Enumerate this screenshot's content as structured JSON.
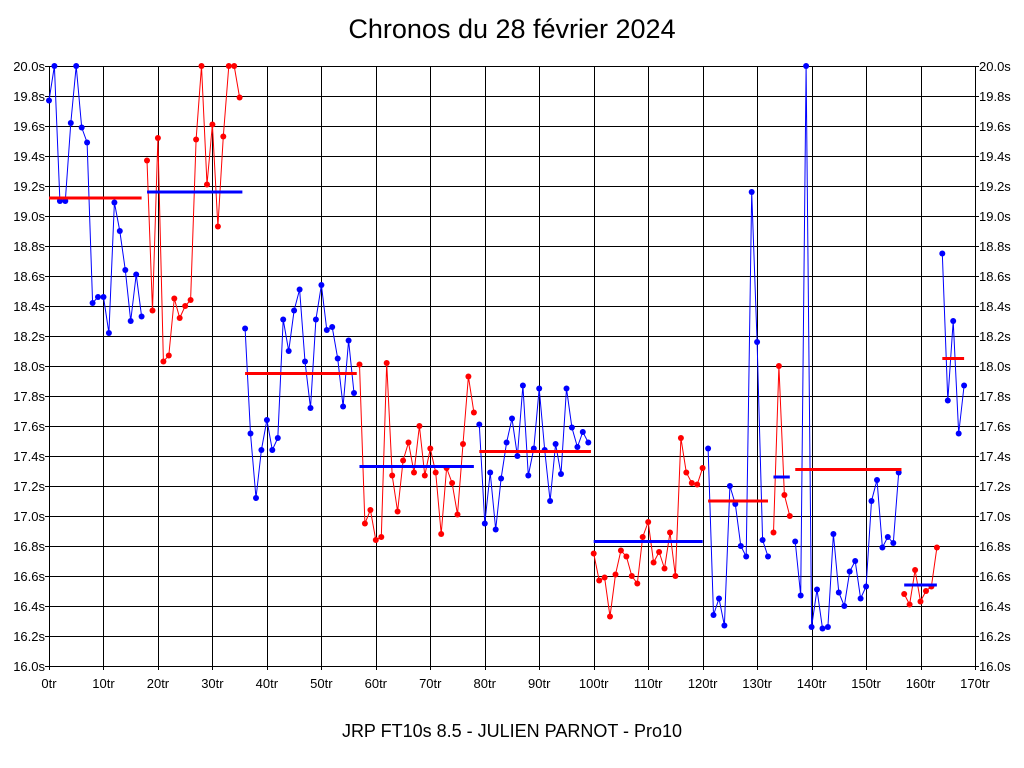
{
  "chart_data": {
    "type": "line",
    "title": "Chronos du 28 février 2024",
    "footer": "JRP FT10s 8.5 - JULIEN PARNOT - Pro10",
    "xlim": [
      0,
      170
    ],
    "ylim": [
      16.0,
      20.0
    ],
    "grid": true,
    "x_ticks": [
      "0tr",
      "10tr",
      "20tr",
      "30tr",
      "40tr",
      "50tr",
      "60tr",
      "70tr",
      "80tr",
      "90tr",
      "100tr",
      "110tr",
      "120tr",
      "130tr",
      "140tr",
      "150tr",
      "160tr",
      "170tr"
    ],
    "y_ticks": [
      "16.0s",
      "16.2s",
      "16.4s",
      "16.6s",
      "16.8s",
      "17.0s",
      "17.2s",
      "17.4s",
      "17.6s",
      "17.8s",
      "18.0s",
      "18.2s",
      "18.4s",
      "18.6s",
      "18.8s",
      "19.0s",
      "19.2s",
      "19.4s",
      "19.6s",
      "19.8s",
      "20.0s"
    ],
    "colors": {
      "blue": "#0000ff",
      "red": "#ff0000",
      "grid": "#000000"
    },
    "series": [
      {
        "color": "#0000ff",
        "x_start": 0,
        "values": [
          19.77,
          20.0,
          19.1,
          19.1,
          19.62,
          20.0,
          19.59,
          19.49,
          18.42,
          18.46,
          18.46,
          18.22,
          19.09,
          18.9,
          18.64,
          18.3,
          18.61,
          18.33
        ]
      },
      {
        "color": "#ff0000",
        "x_start": 18,
        "values": [
          19.37,
          18.37,
          19.52,
          18.03,
          18.07,
          18.45,
          18.32,
          18.4,
          18.44,
          19.51,
          20.0,
          19.21,
          19.61,
          18.93,
          19.53,
          20.0,
          20.0,
          19.79
        ]
      },
      {
        "color": "#0000ff",
        "x_start": 36,
        "values": [
          18.25,
          17.55,
          17.12,
          17.44,
          17.64,
          17.44,
          17.52,
          18.31,
          18.1,
          18.37,
          18.51,
          18.03,
          17.72,
          18.31,
          18.54,
          18.24,
          18.26,
          18.05,
          17.73,
          18.17,
          17.82
        ]
      },
      {
        "color": "#ff0000",
        "x_start": 57,
        "values": [
          18.01,
          16.95,
          17.04,
          16.84,
          16.86,
          18.02,
          17.27,
          17.03,
          17.37,
          17.49,
          17.29,
          17.6,
          17.27,
          17.45,
          17.29,
          16.88,
          17.32,
          17.22,
          17.01,
          17.48,
          17.93,
          17.69
        ]
      },
      {
        "color": "#0000ff",
        "x_start": 79,
        "values": [
          17.61,
          16.95,
          17.29,
          16.91,
          17.25,
          17.49,
          17.65,
          17.4,
          17.87,
          17.27,
          17.45,
          17.85,
          17.44,
          17.1,
          17.48,
          17.28,
          17.85,
          17.59,
          17.46,
          17.56,
          17.49
        ]
      },
      {
        "color": "#ff0000",
        "x_start": 100,
        "values": [
          16.75,
          16.57,
          16.59,
          16.33,
          16.61,
          16.77,
          16.73,
          16.6,
          16.55,
          16.86,
          16.96,
          16.69,
          16.76,
          16.65,
          16.89,
          16.6,
          17.52,
          17.29,
          17.22,
          17.21,
          17.32
        ]
      },
      {
        "color": "#0000ff",
        "x_start": 121,
        "values": [
          17.45,
          16.34,
          16.45,
          16.27,
          17.2,
          17.08,
          16.8,
          16.73,
          19.16,
          18.16,
          16.84,
          16.73
        ]
      },
      {
        "color": "#ff0000",
        "x_start": 133,
        "values": [
          16.89,
          18.0,
          17.14,
          17.0
        ]
      },
      {
        "color": "#0000ff",
        "x_start": 137,
        "values": [
          16.83,
          16.47,
          20.0,
          16.26,
          16.51,
          16.25,
          16.26,
          16.88,
          16.49,
          16.4,
          16.63,
          16.7,
          16.45,
          16.53,
          17.1,
          17.24,
          16.79,
          16.86,
          16.82,
          17.29
        ]
      },
      {
        "color": "#ff0000",
        "x_start": 157,
        "values": [
          16.48,
          16.41,
          16.64,
          16.43,
          16.5,
          16.53,
          16.79
        ]
      },
      {
        "color": "#0000ff",
        "x_start": 164,
        "values": [
          18.75,
          17.77,
          18.3,
          17.55,
          17.87
        ]
      }
    ],
    "averages": [
      {
        "color": "#ff0000",
        "x": [
          0,
          17
        ],
        "value": 19.12
      },
      {
        "color": "#0000ff",
        "x": [
          18,
          35.5
        ],
        "value": 19.16
      },
      {
        "color": "#ff0000",
        "x": [
          36,
          56.5
        ],
        "value": 17.95
      },
      {
        "color": "#0000ff",
        "x": [
          57,
          78
        ],
        "value": 17.33
      },
      {
        "color": "#ff0000",
        "x": [
          79,
          99.5
        ],
        "value": 17.43
      },
      {
        "color": "#0000ff",
        "x": [
          100,
          120
        ],
        "value": 16.83
      },
      {
        "color": "#ff0000",
        "x": [
          121,
          132
        ],
        "value": 17.1
      },
      {
        "color": "#0000ff",
        "x": [
          133,
          136
        ],
        "value": 17.26
      },
      {
        "color": "#ff0000",
        "x": [
          137,
          156.5
        ],
        "value": 17.31
      },
      {
        "color": "#0000ff",
        "x": [
          157,
          163
        ],
        "value": 16.54
      },
      {
        "color": "#ff0000",
        "x": [
          164,
          168
        ],
        "value": 18.05
      }
    ]
  }
}
